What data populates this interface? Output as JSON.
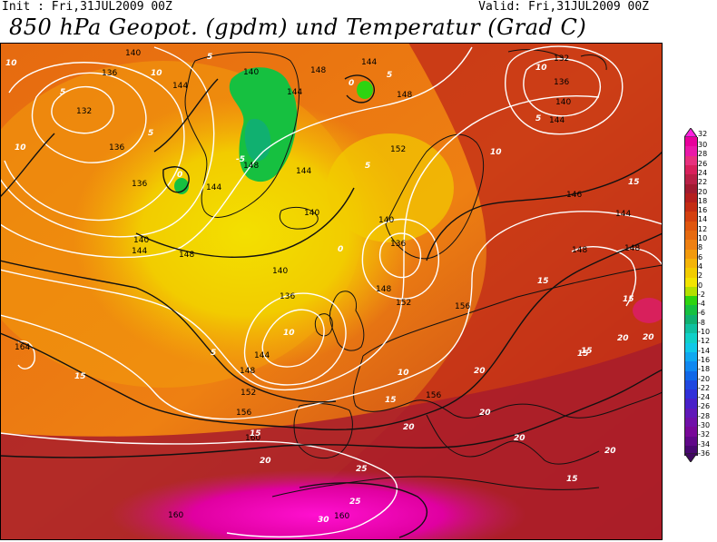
{
  "header": {
    "init": "Init : Fri,31JUL2009 00Z",
    "valid": "Valid: Fri,31JUL2009 00Z",
    "title": "850 hPa Geopot. (gpdm) und Temperatur (Grad C)"
  },
  "colors": {
    "warm_red": "#b2241a",
    "hot_magenta": "#e0009e",
    "orange": "#ee7c12",
    "yellow": "#f2d800",
    "green": "#12c83a"
  },
  "legend": {
    "top_label": "32",
    "entries": [
      {
        "label": "30",
        "color": "#e8009c"
      },
      {
        "label": "28",
        "color": "#ea18a8"
      },
      {
        "label": "26",
        "color": "#e8307e"
      },
      {
        "label": "24",
        "color": "#d8205c"
      },
      {
        "label": "22",
        "color": "#b82046"
      },
      {
        "label": "20",
        "color": "#a01a30"
      },
      {
        "label": "18",
        "color": "#b41e1e"
      },
      {
        "label": "16",
        "color": "#c42c14"
      },
      {
        "label": "14",
        "color": "#d44010"
      },
      {
        "label": "12",
        "color": "#e0560e"
      },
      {
        "label": "10",
        "color": "#e66a10"
      },
      {
        "label": "8",
        "color": "#ee8012"
      },
      {
        "label": "6",
        "color": "#f29a0c"
      },
      {
        "label": "4",
        "color": "#f4b408"
      },
      {
        "label": "2",
        "color": "#f2cc00"
      },
      {
        "label": "0",
        "color": "#f2e400"
      },
      {
        "label": "-2",
        "color": "#b4e000"
      },
      {
        "label": "-4",
        "color": "#2ed410"
      },
      {
        "label": "-6",
        "color": "#16c040"
      },
      {
        "label": "-8",
        "color": "#10b070"
      },
      {
        "label": "-10",
        "color": "#10c0a0"
      },
      {
        "label": "-12",
        "color": "#10d0c8"
      },
      {
        "label": "-14",
        "color": "#10c8e8"
      },
      {
        "label": "-16",
        "color": "#10a8f0"
      },
      {
        "label": "-18",
        "color": "#1088f0"
      },
      {
        "label": "-20",
        "color": "#1068e8"
      },
      {
        "label": "-22",
        "color": "#2048e0"
      },
      {
        "label": "-24",
        "color": "#3030d8"
      },
      {
        "label": "-26",
        "color": "#4820c8"
      },
      {
        "label": "-28",
        "color": "#6018b8"
      },
      {
        "label": "-30",
        "color": "#7010a8"
      },
      {
        "label": "-32",
        "color": "#780898"
      },
      {
        "label": "-34",
        "color": "#600888"
      },
      {
        "label": "-36",
        "color": "#480870"
      }
    ]
  },
  "geopotential_labels": [
    "140",
    "136",
    "132",
    "144",
    "140",
    "148",
    "144",
    "148",
    "132",
    "136",
    "140",
    "144",
    "144",
    "152",
    "144",
    "136",
    "136",
    "144",
    "148",
    "146",
    "140",
    "148",
    "144",
    "136",
    "140",
    "156",
    "152",
    "148",
    "156",
    "160",
    "160",
    "164",
    "148",
    "144",
    "148",
    "148",
    "140",
    "136",
    "160",
    "144",
    "140",
    "152",
    "156"
  ],
  "temperature_labels": [
    "10",
    "5",
    "10",
    "5",
    "0",
    "-5",
    "5",
    "0",
    "10",
    "5",
    "10",
    "15",
    "0",
    "5",
    "10",
    "5",
    "15",
    "15",
    "15",
    "10",
    "15",
    "20",
    "20",
    "20",
    "20",
    "15",
    "20",
    "25",
    "25",
    "30",
    "20",
    "20",
    "15",
    "10",
    "5",
    "15",
    "15",
    "20"
  ]
}
